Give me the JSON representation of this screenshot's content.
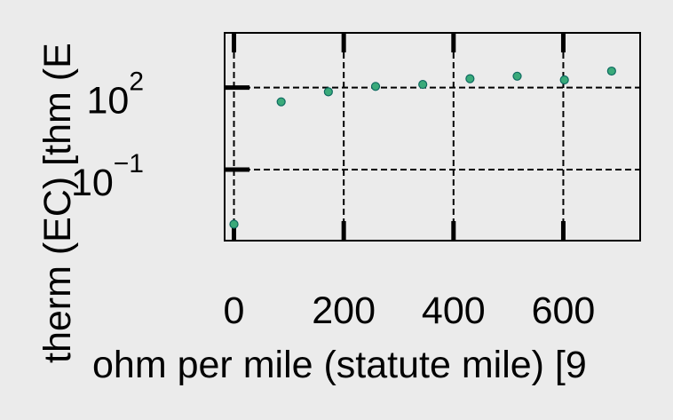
{
  "chart_data": {
    "type": "scatter",
    "title": "",
    "xlabel": "ohm per mile (statute mile) [9",
    "ylabel": "therm (EC) [thm (E",
    "xlim": [
      -17,
      740
    ],
    "ylim_log10": [
      -3.6,
      4.0
    ],
    "yscale": "log",
    "grid": true,
    "grid_style": "dashed",
    "x_ticks": [
      0,
      200,
      400,
      600
    ],
    "x_tick_labels": [
      "0",
      "200",
      "400",
      "600"
    ],
    "y_ticks": [
      {
        "exp": 2,
        "base": "10",
        "sup": "2"
      },
      {
        "exp": -1,
        "base": "10",
        "sup": "−1"
      }
    ],
    "series": [
      {
        "color": "#3aaa7a",
        "edge_color": "#0d6a60",
        "points": [
          {
            "x": 0,
            "y": 0.001
          },
          {
            "x": 86,
            "y": 30
          },
          {
            "x": 172,
            "y": 70
          },
          {
            "x": 258,
            "y": 110
          },
          {
            "x": 344,
            "y": 130
          },
          {
            "x": 430,
            "y": 210
          },
          {
            "x": 516,
            "y": 260
          },
          {
            "x": 602,
            "y": 190
          },
          {
            "x": 688,
            "y": 400
          }
        ]
      }
    ]
  }
}
